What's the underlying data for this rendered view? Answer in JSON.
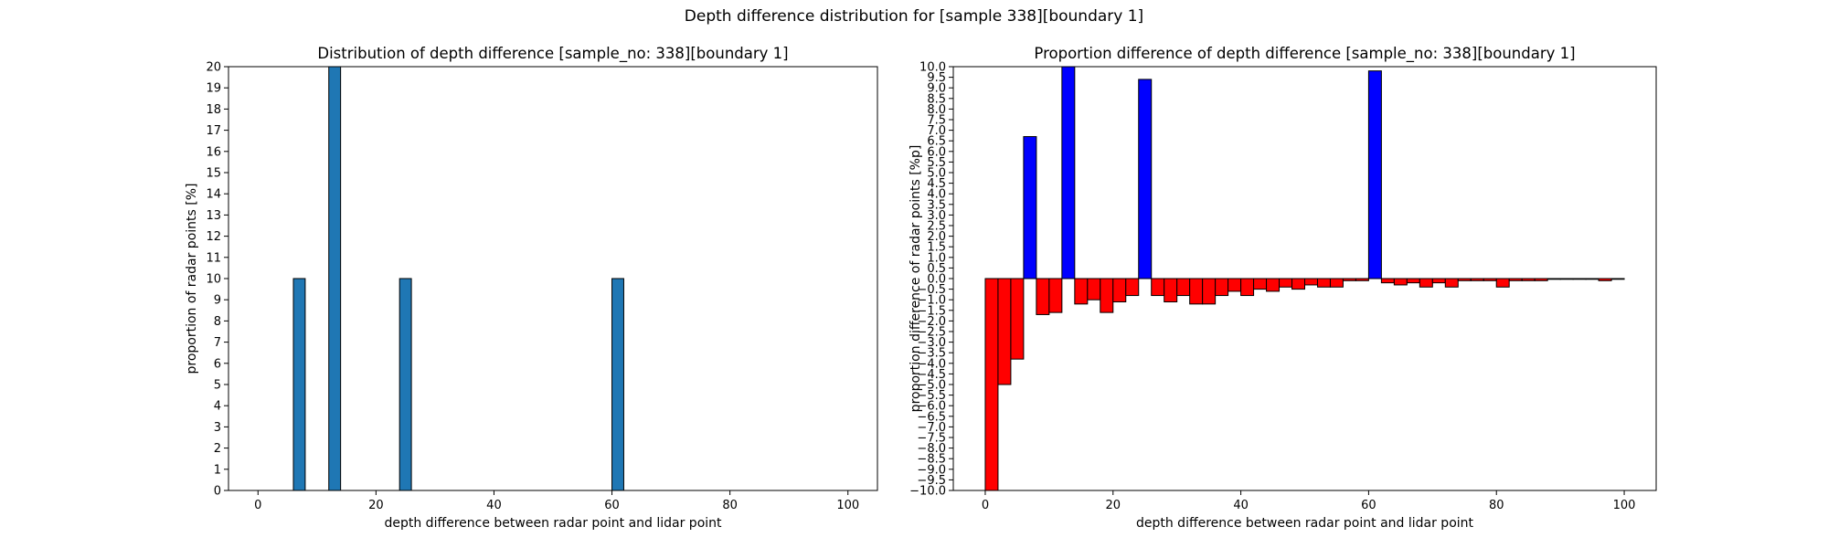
{
  "figure": {
    "suptitle": "Depth difference distribution for [sample 338][boundary 1]"
  },
  "chart_data": [
    {
      "type": "bar",
      "title": "Distribution of depth difference [sample_no: 338][boundary 1]",
      "xlabel": "depth difference between radar point and lidar point",
      "ylabel": "proportion of radar points [%]",
      "xlim": [
        -5,
        105
      ],
      "ylim": [
        0,
        20
      ],
      "xticks": [
        0,
        20,
        40,
        60,
        80,
        100
      ],
      "yticks": [
        0,
        1,
        2,
        3,
        4,
        5,
        6,
        7,
        8,
        9,
        10,
        11,
        12,
        13,
        14,
        15,
        16,
        17,
        18,
        19,
        20
      ],
      "bar_width": 2,
      "bar_color": "#1f77b4",
      "edge_color": "#000000",
      "grid": false,
      "x": [
        7,
        13,
        25,
        61
      ],
      "values": [
        10,
        20,
        10,
        10
      ]
    },
    {
      "type": "bar",
      "title": "Proportion difference of depth difference [sample_no: 338][boundary 1]",
      "xlabel": "depth difference between radar point and lidar point",
      "ylabel": "proportion difference of radar points [%p]",
      "xlim": [
        -5,
        105
      ],
      "ylim": [
        -10,
        10
      ],
      "xticks": [
        0,
        20,
        40,
        60,
        80,
        100
      ],
      "yticks": [
        -10.0,
        -9.5,
        -9.0,
        -8.5,
        -8.0,
        -7.5,
        -7.0,
        -6.5,
        -6.0,
        -5.5,
        -5.0,
        -4.5,
        -4.0,
        -3.5,
        -3.0,
        -2.5,
        -2.0,
        -1.5,
        -1.0,
        -0.5,
        0.0,
        0.5,
        1.0,
        1.5,
        2.0,
        2.5,
        3.0,
        3.5,
        4.0,
        4.5,
        5.0,
        5.5,
        6.0,
        6.5,
        7.0,
        7.5,
        8.0,
        8.5,
        9.0,
        9.5,
        10.0
      ],
      "bar_width": 2,
      "positive_color": "#0000ff",
      "negative_color": "#ff0000",
      "edge_color": "#000000",
      "grid": false,
      "x": [
        1,
        3,
        5,
        7,
        9,
        11,
        13,
        15,
        17,
        19,
        21,
        23,
        25,
        27,
        29,
        31,
        33,
        35,
        37,
        39,
        41,
        43,
        45,
        47,
        49,
        51,
        53,
        55,
        57,
        59,
        61,
        63,
        65,
        67,
        69,
        71,
        73,
        75,
        77,
        79,
        81,
        83,
        85,
        87,
        89,
        91,
        93,
        95,
        97,
        99
      ],
      "values": [
        -10.0,
        -5.0,
        -3.8,
        6.7,
        -1.7,
        -1.6,
        10.0,
        -1.2,
        -1.0,
        -1.6,
        -1.1,
        -0.8,
        9.4,
        -0.8,
        -1.1,
        -0.8,
        -1.2,
        -1.2,
        -0.8,
        -0.6,
        -0.8,
        -0.5,
        -0.6,
        -0.4,
        -0.5,
        -0.3,
        -0.4,
        -0.4,
        -0.1,
        -0.1,
        9.8,
        -0.2,
        -0.3,
        -0.2,
        -0.4,
        -0.2,
        -0.4,
        -0.1,
        -0.1,
        -0.1,
        -0.4,
        -0.1,
        -0.1,
        -0.1,
        0.0,
        0.0,
        0.0,
        0.0,
        -0.1,
        0.0
      ]
    }
  ]
}
